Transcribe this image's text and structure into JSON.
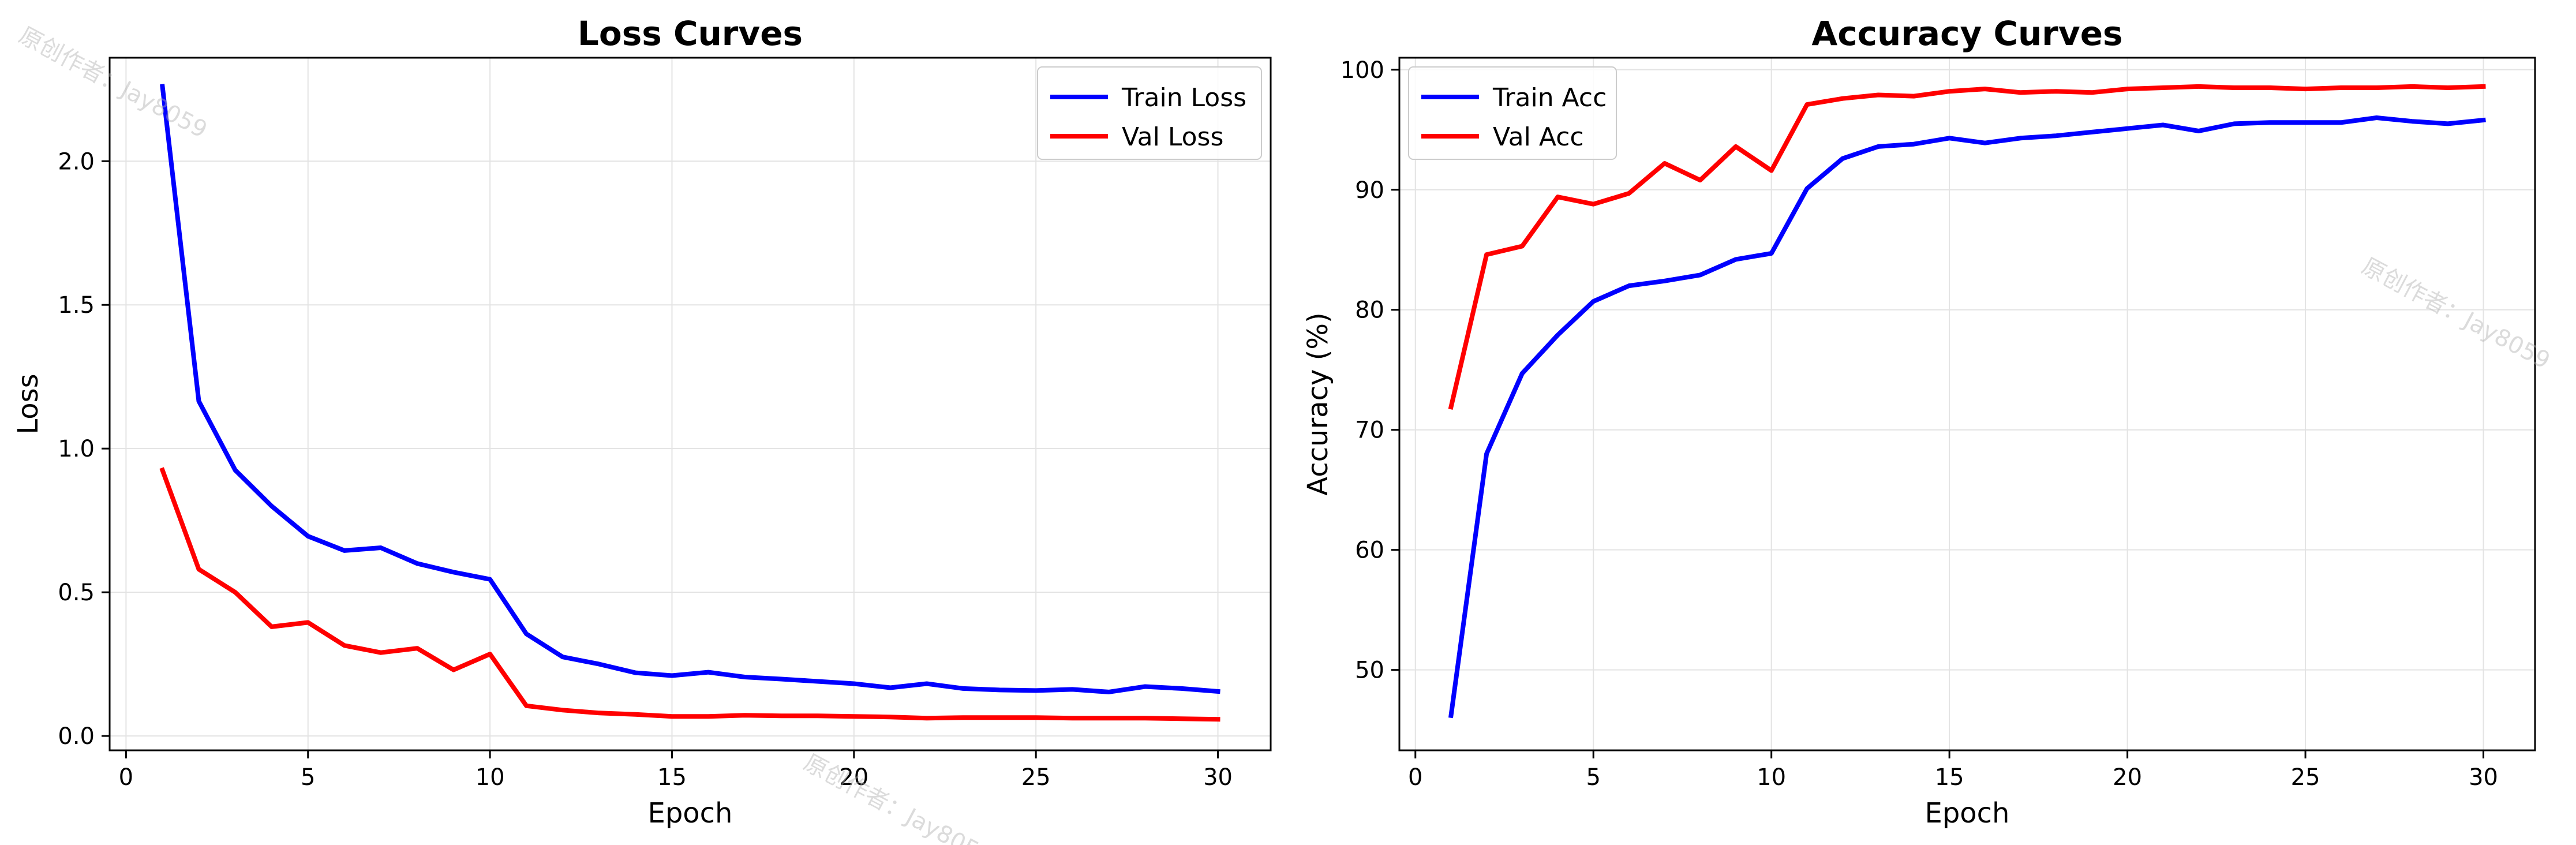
{
  "watermark_text": "原创作者：Jay8059",
  "chart_data": [
    {
      "type": "line",
      "title": "Loss Curves",
      "xlabel": "Epoch",
      "ylabel": "Loss",
      "xlim": [
        -0.45,
        31.45
      ],
      "ylim": [
        -0.05,
        2.36
      ],
      "xticks": [
        0,
        5,
        10,
        15,
        20,
        25,
        30
      ],
      "yticks": [
        0.0,
        0.5,
        1.0,
        1.5,
        2.0
      ],
      "ytick_labels": [
        "0.0",
        "0.5",
        "1.0",
        "1.5",
        "2.0"
      ],
      "grid": true,
      "legend_position": "upper-right",
      "x": [
        1,
        2,
        3,
        4,
        5,
        6,
        7,
        8,
        9,
        10,
        11,
        12,
        13,
        14,
        15,
        16,
        17,
        18,
        19,
        20,
        21,
        22,
        23,
        24,
        25,
        26,
        27,
        28,
        29,
        30
      ],
      "series": [
        {
          "name": "Train Loss",
          "color": "#0000ff",
          "values": [
            2.26,
            1.165,
            0.925,
            0.8,
            0.695,
            0.645,
            0.655,
            0.6,
            0.57,
            0.545,
            0.355,
            0.275,
            0.25,
            0.22,
            0.21,
            0.222,
            0.205,
            0.198,
            0.19,
            0.182,
            0.168,
            0.182,
            0.165,
            0.16,
            0.158,
            0.162,
            0.153,
            0.172,
            0.165,
            0.155
          ]
        },
        {
          "name": "Val Loss",
          "color": "#ff0000",
          "values": [
            0.925,
            0.58,
            0.5,
            0.38,
            0.395,
            0.315,
            0.29,
            0.305,
            0.23,
            0.285,
            0.105,
            0.09,
            0.08,
            0.075,
            0.068,
            0.068,
            0.072,
            0.07,
            0.07,
            0.068,
            0.066,
            0.062,
            0.064,
            0.064,
            0.064,
            0.062,
            0.062,
            0.062,
            0.06,
            0.058
          ]
        }
      ]
    },
    {
      "type": "line",
      "title": "Accuracy Curves",
      "xlabel": "Epoch",
      "ylabel": "Accuracy (%)",
      "xlim": [
        -0.45,
        31.45
      ],
      "ylim": [
        43.3,
        101.0
      ],
      "xticks": [
        0,
        5,
        10,
        15,
        20,
        25,
        30
      ],
      "yticks": [
        50,
        60,
        70,
        80,
        90,
        100
      ],
      "ytick_labels": [
        "50",
        "60",
        "70",
        "80",
        "90",
        "100"
      ],
      "grid": true,
      "legend_position": "upper-left",
      "x": [
        1,
        2,
        3,
        4,
        5,
        6,
        7,
        8,
        9,
        10,
        11,
        12,
        13,
        14,
        15,
        16,
        17,
        18,
        19,
        20,
        21,
        22,
        23,
        24,
        25,
        26,
        27,
        28,
        29,
        30
      ],
      "series": [
        {
          "name": "Train Acc",
          "color": "#0000ff",
          "values": [
            46.2,
            68.0,
            74.7,
            77.9,
            80.7,
            82.0,
            82.4,
            82.9,
            84.2,
            84.7,
            90.1,
            92.6,
            93.6,
            93.8,
            94.3,
            93.9,
            94.3,
            94.5,
            94.8,
            95.1,
            95.4,
            94.9,
            95.5,
            95.6,
            95.6,
            95.6,
            96.0,
            95.7,
            95.5,
            95.8
          ]
        },
        {
          "name": "Val Acc",
          "color": "#ff0000",
          "values": [
            71.9,
            84.6,
            85.3,
            89.4,
            88.8,
            89.7,
            92.2,
            90.8,
            93.6,
            91.6,
            97.1,
            97.6,
            97.9,
            97.8,
            98.2,
            98.4,
            98.1,
            98.2,
            98.1,
            98.4,
            98.5,
            98.6,
            98.5,
            98.5,
            98.4,
            98.5,
            98.5,
            98.6,
            98.5,
            98.6
          ]
        }
      ]
    }
  ]
}
